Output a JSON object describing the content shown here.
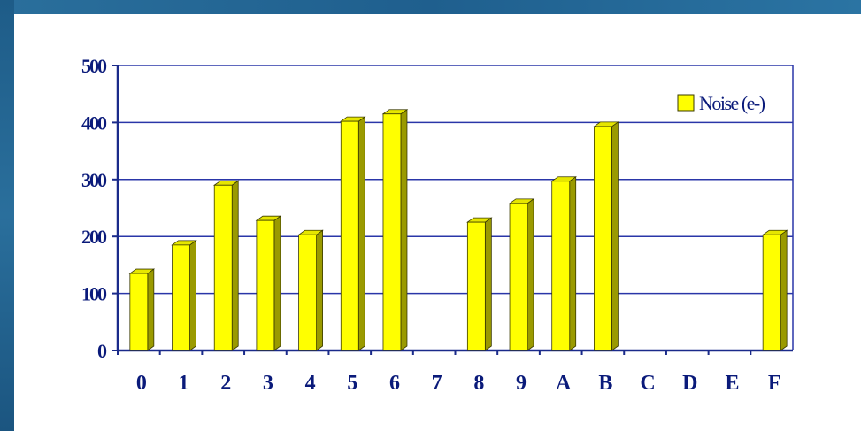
{
  "chart_data": {
    "type": "bar",
    "title": "",
    "xlabel": "",
    "ylabel": "",
    "categories": [
      "0",
      "1",
      "2",
      "3",
      "4",
      "5",
      "6",
      "7",
      "8",
      "9",
      "A",
      "B",
      "C",
      "D",
      "E",
      "F"
    ],
    "series": [
      {
        "name": "Noise (e-)",
        "values": [
          135,
          185,
          290,
          228,
          203,
          402,
          415,
          null,
          225,
          258,
          297,
          393,
          null,
          null,
          null,
          203
        ]
      }
    ],
    "ylim": [
      0,
      500
    ],
    "yticks": [
      0,
      100,
      200,
      300,
      400,
      500
    ],
    "grid": true,
    "legend_position": "top-right",
    "colors": {
      "bar_front": "#ffff00",
      "bar_top": "#e6e600",
      "bar_side": "#9a9a00",
      "bar_outline": "#3a3a00",
      "axis": "#1a2a8a",
      "gridline": "#2a36a8",
      "labels": "#0a1a7a",
      "frame_band": "#1f5f8e"
    }
  }
}
